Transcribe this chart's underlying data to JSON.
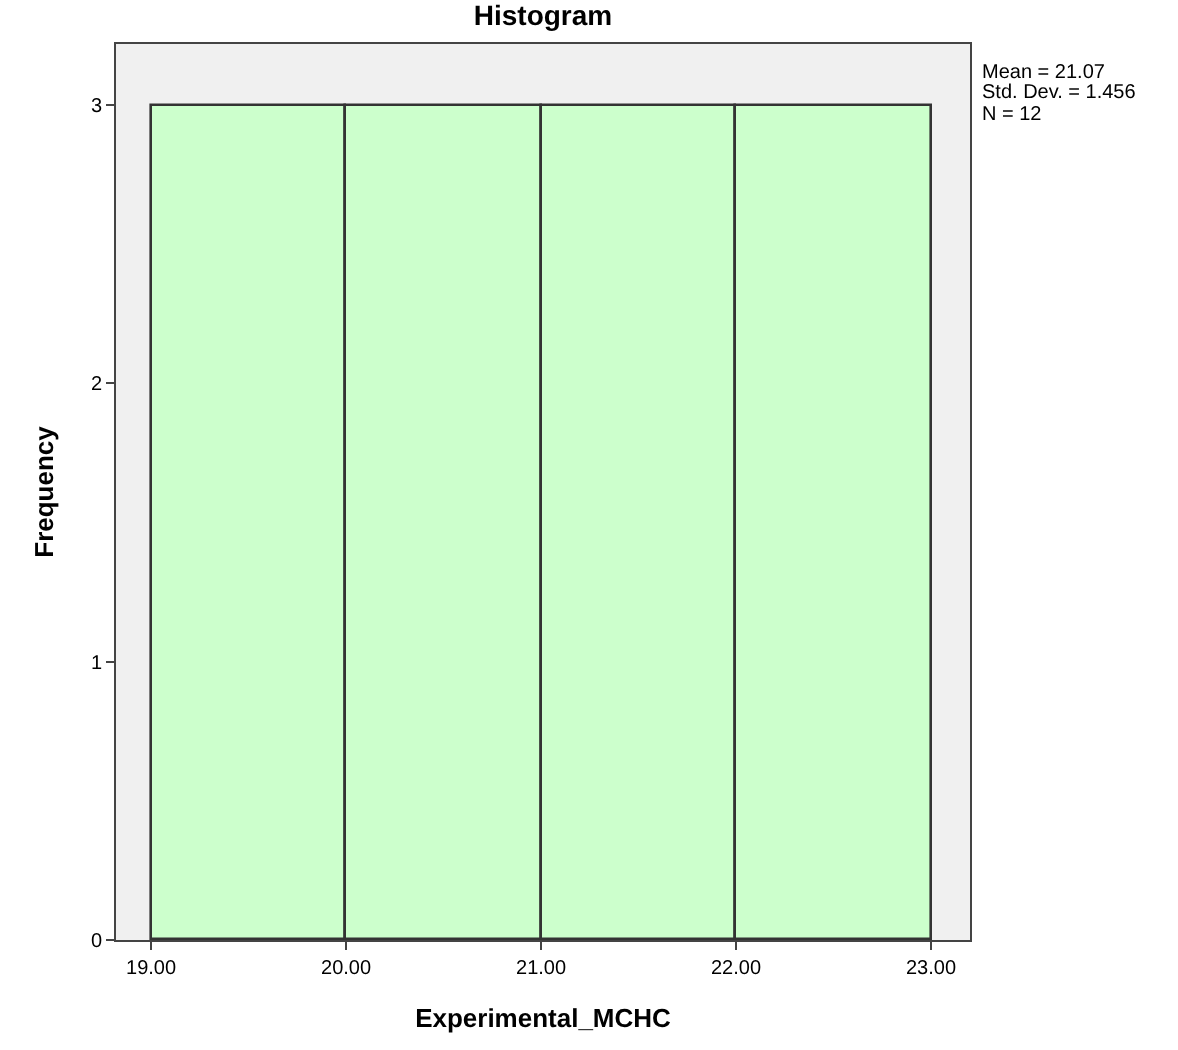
{
  "chart_data": {
    "type": "histogram",
    "title": "Histogram",
    "xlabel": "Experimental_MCHC",
    "ylabel": "Frequency",
    "bins": [
      19,
      20,
      21,
      22,
      23
    ],
    "values": [
      3,
      3,
      3,
      3
    ],
    "color": "#ccffcc",
    "xlim": [
      18.82,
      23.2
    ],
    "xticks": [
      {
        "value": 19,
        "label": "19.00"
      },
      {
        "value": 20,
        "label": "20.00"
      },
      {
        "value": 21,
        "label": "21.00"
      },
      {
        "value": 22,
        "label": "22.00"
      },
      {
        "value": 23,
        "label": "23.00"
      }
    ],
    "ylim": [
      0,
      3.22
    ],
    "yticks": [
      0,
      1,
      2,
      3
    ],
    "annotations": [
      "Mean = 21.07",
      "Std. Dev. = 1.456",
      "N = 12"
    ]
  }
}
